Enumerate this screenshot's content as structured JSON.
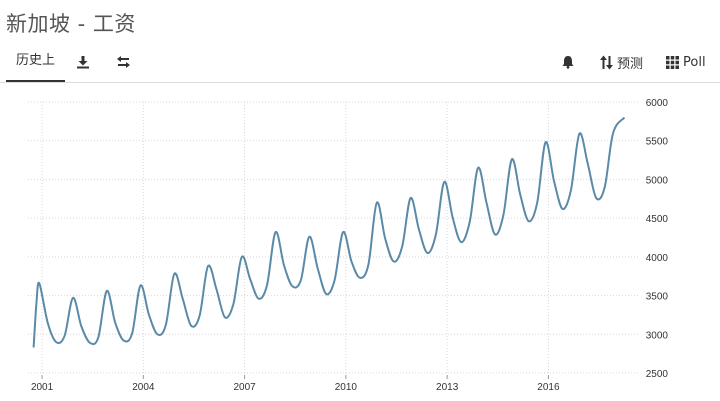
{
  "page": {
    "title": "新加坡 - 工资"
  },
  "toolbar": {
    "history_tab": "历史上",
    "download_icon": "download-icon",
    "compare_icon": "swap-arrows-icon",
    "alert_icon": "bell-icon",
    "forecast_label": "预测",
    "forecast_icon": "sort-arrows-icon",
    "poll_label": "Poll",
    "poll_icon": "grid-icon"
  },
  "colors": {
    "line": "#5b8aa8",
    "grid": "#d8d8d8",
    "axis_text": "#333333"
  },
  "chart_data": {
    "type": "line",
    "title": "",
    "xlabel": "",
    "ylabel": "",
    "ylim": [
      2500,
      6000
    ],
    "yticks": [
      "6000",
      "5500",
      "5000",
      "4500",
      "4000",
      "3500",
      "3000",
      "2500"
    ],
    "xticks": [
      "2001",
      "2004",
      "2007",
      "2010",
      "2013",
      "2016"
    ],
    "xlim": [
      "2000-08",
      "2018-06"
    ],
    "grid": true,
    "y_axis_position": "right",
    "series": [
      {
        "points": [
          [
            "2000-10",
            2830
          ],
          [
            "2000-11",
            3400
          ],
          [
            "2000-12",
            3660
          ],
          [
            "2001-03",
            3150
          ],
          [
            "2001-06",
            2900
          ],
          [
            "2001-09",
            2980
          ],
          [
            "2001-12",
            3470
          ],
          [
            "2002-03",
            3100
          ],
          [
            "2002-06",
            2890
          ],
          [
            "2002-09",
            2960
          ],
          [
            "2002-12",
            3560
          ],
          [
            "2003-03",
            3150
          ],
          [
            "2003-06",
            2920
          ],
          [
            "2003-09",
            3010
          ],
          [
            "2003-12",
            3630
          ],
          [
            "2004-03",
            3250
          ],
          [
            "2004-06",
            3000
          ],
          [
            "2004-09",
            3120
          ],
          [
            "2004-12",
            3780
          ],
          [
            "2005-03",
            3460
          ],
          [
            "2005-06",
            3110
          ],
          [
            "2005-09",
            3240
          ],
          [
            "2005-12",
            3880
          ],
          [
            "2006-03",
            3580
          ],
          [
            "2006-06",
            3220
          ],
          [
            "2006-09",
            3390
          ],
          [
            "2006-12",
            4000
          ],
          [
            "2007-03",
            3710
          ],
          [
            "2007-06",
            3460
          ],
          [
            "2007-09",
            3640
          ],
          [
            "2007-12",
            4320
          ],
          [
            "2008-03",
            3890
          ],
          [
            "2008-06",
            3620
          ],
          [
            "2008-09",
            3700
          ],
          [
            "2008-12",
            4260
          ],
          [
            "2009-03",
            3850
          ],
          [
            "2009-06",
            3520
          ],
          [
            "2009-09",
            3700
          ],
          [
            "2009-12",
            4320
          ],
          [
            "2010-03",
            3940
          ],
          [
            "2010-06",
            3730
          ],
          [
            "2010-09",
            3900
          ],
          [
            "2010-12",
            4700
          ],
          [
            "2011-03",
            4230
          ],
          [
            "2011-06",
            3940
          ],
          [
            "2011-09",
            4130
          ],
          [
            "2011-12",
            4760
          ],
          [
            "2012-03",
            4350
          ],
          [
            "2012-06",
            4050
          ],
          [
            "2012-09",
            4290
          ],
          [
            "2012-12",
            4970
          ],
          [
            "2013-03",
            4500
          ],
          [
            "2013-06",
            4190
          ],
          [
            "2013-09",
            4450
          ],
          [
            "2013-12",
            5150
          ],
          [
            "2014-03",
            4700
          ],
          [
            "2014-06",
            4290
          ],
          [
            "2014-09",
            4540
          ],
          [
            "2014-12",
            5260
          ],
          [
            "2015-03",
            4800
          ],
          [
            "2015-06",
            4460
          ],
          [
            "2015-09",
            4700
          ],
          [
            "2015-12",
            5480
          ],
          [
            "2016-03",
            4980
          ],
          [
            "2016-06",
            4620
          ],
          [
            "2016-09",
            4860
          ],
          [
            "2016-12",
            5590
          ],
          [
            "2017-03",
            5200
          ],
          [
            "2017-06",
            4760
          ],
          [
            "2017-09",
            4900
          ],
          [
            "2017-12",
            5600
          ],
          [
            "2018-04",
            5800
          ]
        ]
      }
    ]
  }
}
